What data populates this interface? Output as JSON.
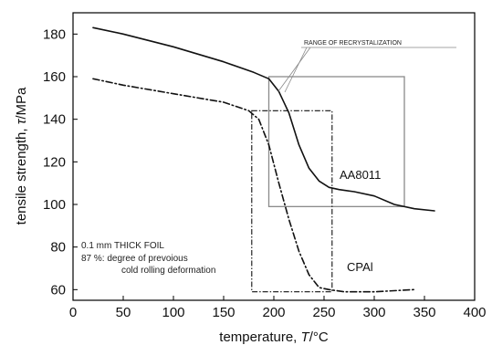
{
  "chart_data": {
    "type": "line",
    "xlabel": "temperature, ",
    "xlabel_var": "T",
    "xlabel_unit": "/°C",
    "ylabel": "tensile strength, ",
    "ylabel_var": "τ",
    "ylabel_unit": "/MPa",
    "xlim": [
      0,
      400
    ],
    "ylim": [
      55,
      190
    ],
    "x_ticks": [
      0,
      50,
      100,
      150,
      200,
      250,
      300,
      350,
      400
    ],
    "y_ticks": [
      60,
      80,
      100,
      120,
      140,
      160,
      180
    ],
    "grid": false,
    "series": [
      {
        "name": "AA8011",
        "line_style": "solid",
        "x": [
          20,
          50,
          100,
          150,
          180,
          195,
          205,
          215,
          225,
          235,
          245,
          255,
          265,
          280,
          300,
          320,
          340,
          360
        ],
        "y": [
          183,
          180,
          174,
          167,
          162,
          159,
          153,
          143,
          128,
          117,
          111,
          108,
          107,
          106,
          104,
          100,
          98,
          97
        ]
      },
      {
        "name": "CPAl",
        "line_style": "dash-dot",
        "x": [
          20,
          50,
          100,
          150,
          175,
          185,
          195,
          205,
          215,
          225,
          235,
          245,
          255,
          270,
          300,
          340
        ],
        "y": [
          159,
          156,
          152,
          148,
          144,
          140,
          128,
          110,
          93,
          78,
          67,
          61,
          60,
          59,
          59,
          60
        ]
      }
    ],
    "annotations": {
      "range_label": "RANGE OF RECRYSTALIZATION",
      "note_line1": "0.1 mm THICK FOIL",
      "note_line2": "87 %: degree of prevoious",
      "note_line3": "cold rolling deformation",
      "aa_box": {
        "x": [
          195,
          330
        ],
        "y": [
          99,
          160
        ]
      },
      "cp_box": {
        "x": [
          178,
          258
        ],
        "y": [
          59,
          144
        ]
      }
    }
  }
}
